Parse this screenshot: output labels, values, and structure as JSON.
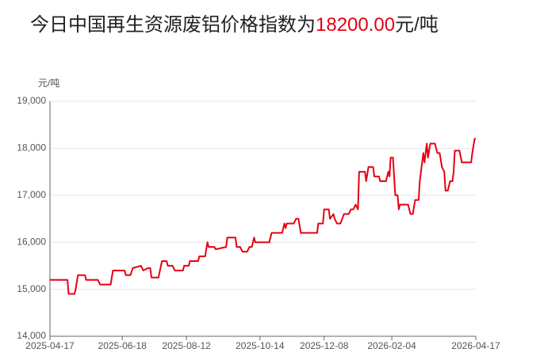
{
  "chart_data": {
    "type": "line",
    "title": {
      "prefix": "今日中国再生资源废铝价格指数为",
      "value": "18200.00",
      "suffix": "元/吨"
    },
    "y_unit": "元/吨",
    "color": "#e60012",
    "title_value_color": "#e60012",
    "grid": true,
    "ylim": [
      14000,
      19000
    ],
    "yticks": [
      {
        "value": 14000,
        "label": "14,000"
      },
      {
        "value": 15000,
        "label": "15,000"
      },
      {
        "value": 16000,
        "label": "16,000"
      },
      {
        "value": 17000,
        "label": "17,000"
      },
      {
        "value": 18000,
        "label": "18,000"
      },
      {
        "value": 19000,
        "label": "19,000"
      }
    ],
    "xlim": [
      "2025-04-17",
      "2026-04-17"
    ],
    "xticks": [
      "2025-04-17",
      "2025-06-18",
      "2025-08-12",
      "2025-10-14",
      "2025-12-08",
      "2026-02-04",
      "2026-04-17"
    ],
    "x": [
      "2025-04-17",
      "2025-05-02",
      "2025-05-03",
      "2025-05-08",
      "2025-05-09",
      "2025-05-11",
      "2025-05-17",
      "2025-05-18",
      "2025-05-28",
      "2025-05-30",
      "2025-06-08",
      "2025-06-10",
      "2025-06-20",
      "2025-06-21",
      "2025-06-25",
      "2025-06-27",
      "2025-07-04",
      "2025-07-06",
      "2025-07-10",
      "2025-07-12",
      "2025-07-13",
      "2025-07-19",
      "2025-07-22",
      "2025-07-26",
      "2025-07-27",
      "2025-07-31",
      "2025-08-02",
      "2025-08-09",
      "2025-08-10",
      "2025-08-14",
      "2025-08-15",
      "2025-08-22",
      "2025-08-23",
      "2025-08-28",
      "2025-08-30",
      "2025-08-31",
      "2025-09-05",
      "2025-09-06",
      "2025-09-15",
      "2025-09-16",
      "2025-09-23",
      "2025-09-24",
      "2025-09-27",
      "2025-09-29",
      "2025-10-03",
      "2025-10-05",
      "2025-10-07",
      "2025-10-09",
      "2025-10-10",
      "2025-10-22",
      "2025-10-24",
      "2025-11-02",
      "2025-11-04",
      "2025-11-05",
      "2025-11-06",
      "2025-11-12",
      "2025-11-14",
      "2025-11-16",
      "2025-11-18",
      "2025-12-02",
      "2025-12-03",
      "2025-12-07",
      "2025-12-08",
      "2025-12-12",
      "2025-12-13",
      "2025-12-16",
      "2025-12-17",
      "2025-12-19",
      "2025-12-22",
      "2025-12-25",
      "2025-12-29",
      "2025-12-31",
      "2026-01-02",
      "2026-01-04",
      "2026-01-06",
      "2026-01-07",
      "2026-01-12",
      "2026-01-13",
      "2026-01-15",
      "2026-01-19",
      "2026-01-20",
      "2026-01-24",
      "2026-01-25",
      "2026-01-30",
      "2026-02-01",
      "2026-02-02",
      "2026-02-03",
      "2026-02-05",
      "2026-02-06",
      "2026-02-07",
      "2026-02-09",
      "2026-02-10",
      "2026-02-11",
      "2026-02-18",
      "2026-02-20",
      "2026-02-22",
      "2026-02-24",
      "2026-02-27",
      "2026-02-28",
      "2026-03-03",
      "2026-03-04",
      "2026-03-06",
      "2026-03-07",
      "2026-03-09",
      "2026-03-13",
      "2026-03-15",
      "2026-03-17",
      "2026-03-19",
      "2026-03-21",
      "2026-03-22",
      "2026-03-24",
      "2026-03-26",
      "2026-03-28",
      "2026-03-29",
      "2026-03-30",
      "2026-04-03",
      "2026-04-05",
      "2026-04-13",
      "2026-04-14",
      "2026-04-16",
      "2026-04-17"
    ],
    "values": [
      15200,
      15200,
      14900,
      14900,
      15000,
      15300,
      15300,
      15200,
      15200,
      15100,
      15100,
      15400,
      15400,
      15300,
      15300,
      15450,
      15500,
      15400,
      15450,
      15450,
      15250,
      15250,
      15600,
      15600,
      15500,
      15500,
      15400,
      15400,
      15500,
      15500,
      15600,
      15600,
      15700,
      15700,
      16000,
      15900,
      15900,
      15850,
      15900,
      16100,
      16100,
      15900,
      15900,
      15800,
      15800,
      15900,
      15900,
      16100,
      16000,
      16000,
      16200,
      16200,
      16400,
      16300,
      16400,
      16400,
      16500,
      16500,
      16200,
      16200,
      16400,
      16400,
      16700,
      16700,
      16500,
      16600,
      16500,
      16400,
      16400,
      16600,
      16600,
      16700,
      16700,
      16800,
      16700,
      17500,
      17500,
      17300,
      17600,
      17600,
      17400,
      17400,
      17300,
      17300,
      17500,
      17400,
      17800,
      17800,
      17400,
      17000,
      17000,
      16700,
      16800,
      16800,
      16600,
      16600,
      16900,
      16900,
      17300,
      17900,
      17700,
      18100,
      17800,
      18100,
      18100,
      17900,
      17900,
      17600,
      17500,
      17100,
      17100,
      17300,
      17300,
      17500,
      17950,
      17950,
      17700,
      17700,
      17900,
      18200,
      18200
    ]
  }
}
